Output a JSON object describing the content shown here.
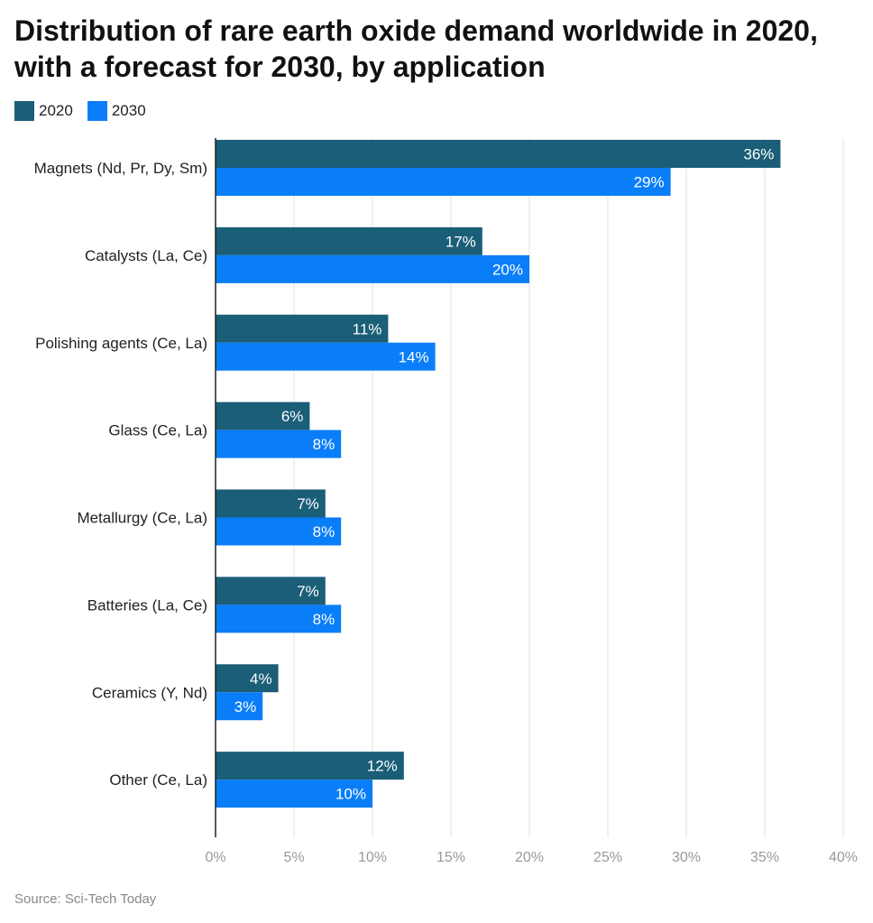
{
  "title": "Distribution of rare earth oxide demand worldwide in 2020, with a forecast for 2030, by application",
  "source": "Source: Sci-Tech Today",
  "colors": {
    "s2020": "#1a5e77",
    "s2030": "#0a7ef8",
    "grid": "#e2e2e2",
    "axis": "#222222",
    "tick": "#999999"
  },
  "legend": [
    {
      "label": "2020"
    },
    {
      "label": "2030"
    }
  ],
  "chart_data": {
    "type": "bar",
    "orientation": "horizontal",
    "title": "Distribution of rare earth oxide demand worldwide in 2020, with a forecast for 2030, by application",
    "categories": [
      "Magnets (Nd, Pr, Dy, Sm)",
      "Catalysts (La, Ce)",
      "Polishing agents (Ce, La)",
      "Glass (Ce, La)",
      "Metallurgy (Ce, La)",
      "Batteries (La, Ce)",
      "Ceramics (Y, Nd)",
      "Other (Ce, La)"
    ],
    "series": [
      {
        "name": "2020",
        "values": [
          36,
          17,
          11,
          6,
          7,
          7,
          4,
          12
        ],
        "labels": [
          "36%",
          "17%",
          "11%",
          "6%",
          "7%",
          "7%",
          "4%",
          "12%"
        ]
      },
      {
        "name": "2030",
        "values": [
          29,
          20,
          14,
          8,
          8,
          8,
          3,
          10
        ],
        "labels": [
          "29%",
          "20%",
          "14%",
          "8%",
          "8%",
          "8%",
          "3%",
          "10%"
        ]
      }
    ],
    "xlim": [
      0,
      40
    ],
    "xticks": [
      0,
      5,
      10,
      15,
      20,
      25,
      30,
      35,
      40
    ],
    "xtick_labels": [
      "0%",
      "5%",
      "10%",
      "15%",
      "20%",
      "25%",
      "30%",
      "35%",
      "40%"
    ],
    "grid": true,
    "legend_position": "top-left"
  }
}
